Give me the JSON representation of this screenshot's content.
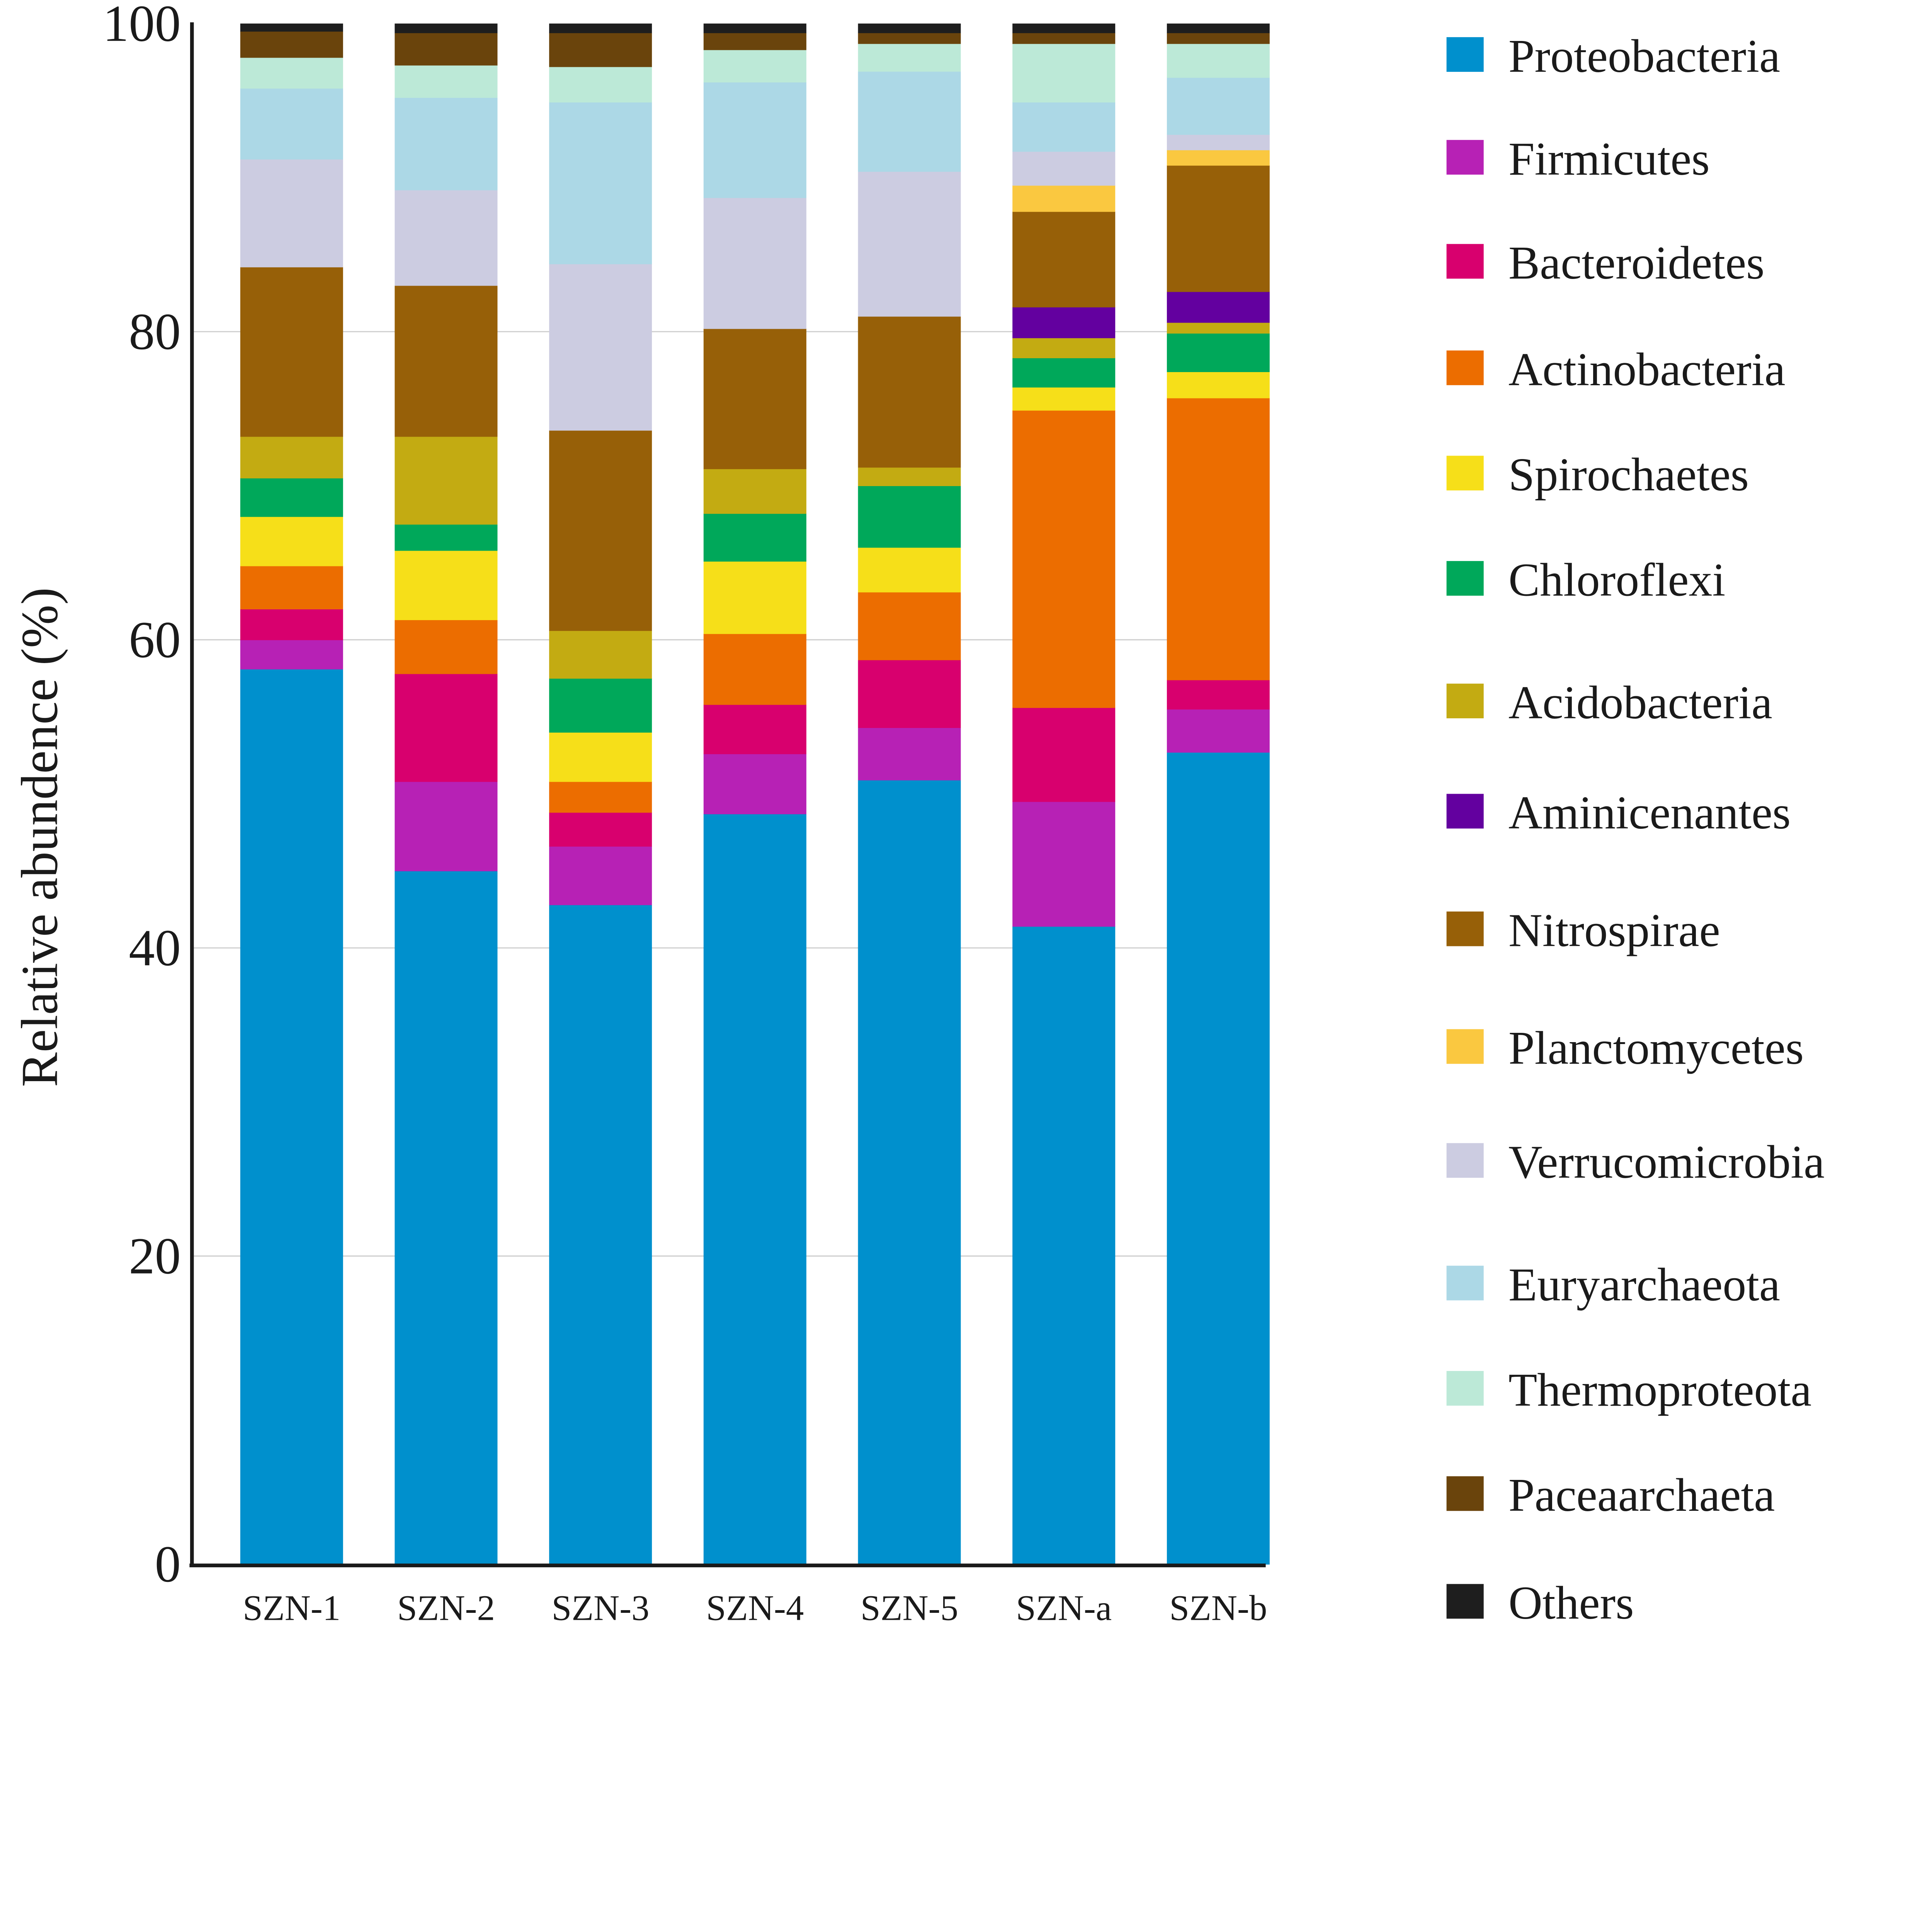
{
  "chart_data": {
    "type": "bar",
    "stacked": true,
    "title": "",
    "xlabel": "",
    "ylabel": "Relative abundence (%)",
    "ylim": [
      0,
      100
    ],
    "yticks": [
      "0",
      "20",
      "40",
      "60",
      "80",
      "100"
    ],
    "grid": true,
    "legend_position": "right",
    "categories": [
      "SZN-1",
      "SZN-2",
      "SZN-3",
      "SZN-4",
      "SZN-5",
      "SZN-a",
      "SZN-b"
    ],
    "series": [
      {
        "name": "Proteobacteria",
        "color": "#0090cd",
        "values": [
          58.1,
          45.0,
          42.8,
          48.7,
          50.9,
          41.4,
          52.7
        ]
      },
      {
        "name": "Firmicutes",
        "color": "#b721b5",
        "values": [
          1.9,
          5.8,
          3.8,
          3.9,
          3.4,
          8.1,
          2.8
        ]
      },
      {
        "name": "Bacteroidetes",
        "color": "#d8006e",
        "values": [
          2.0,
          7.0,
          2.2,
          3.2,
          4.4,
          6.1,
          1.9
        ]
      },
      {
        "name": "Actinobacteria",
        "color": "#ec6d00",
        "values": [
          2.8,
          3.5,
          2.0,
          4.6,
          4.4,
          19.3,
          18.3
        ]
      },
      {
        "name": "Spirochaetes",
        "color": "#f6df19",
        "values": [
          3.2,
          4.5,
          3.2,
          4.7,
          2.9,
          1.5,
          1.7
        ]
      },
      {
        "name": "Chloroflexi",
        "color": "#00a85a",
        "values": [
          2.5,
          1.7,
          3.5,
          3.1,
          4.0,
          1.9,
          2.5
        ]
      },
      {
        "name": "Acidobacteria",
        "color": "#c3ab12",
        "values": [
          2.7,
          5.7,
          3.1,
          2.9,
          1.2,
          1.3,
          0.7
        ]
      },
      {
        "name": "Aminicenantes",
        "color": "#63009f",
        "values": [
          0,
          0,
          0,
          0,
          0,
          2.0,
          2.0
        ]
      },
      {
        "name": "Nitrospirae",
        "color": "#976008",
        "values": [
          11.0,
          9.8,
          13.0,
          9.1,
          9.8,
          6.2,
          8.2
        ]
      },
      {
        "name": "Planctomycetes",
        "color": "#fac840",
        "values": [
          0,
          0,
          0,
          0,
          0,
          1.7,
          1.0
        ]
      },
      {
        "name": "Verrucomicrobia",
        "color": "#cccce1",
        "values": [
          7.0,
          6.2,
          10.8,
          8.5,
          9.4,
          2.2,
          1.0
        ]
      },
      {
        "name": "Euryarchaeota",
        "color": "#acd8e6",
        "values": [
          4.6,
          6.0,
          10.5,
          7.5,
          6.5,
          3.2,
          3.7
        ]
      },
      {
        "name": "Thermoproteota",
        "color": "#bce9d7",
        "values": [
          2.0,
          2.1,
          2.3,
          2.1,
          1.8,
          3.8,
          2.2
        ]
      },
      {
        "name": "Paceaarchaeta",
        "color": "#6a440c",
        "values": [
          1.7,
          2.1,
          2.2,
          1.1,
          0.7,
          0.7,
          0.7
        ]
      },
      {
        "name": "Others",
        "color": "#1e1e1e",
        "values": [
          0.5,
          0.6,
          0.6,
          0.6,
          0.6,
          0.6,
          0.6
        ]
      }
    ]
  }
}
